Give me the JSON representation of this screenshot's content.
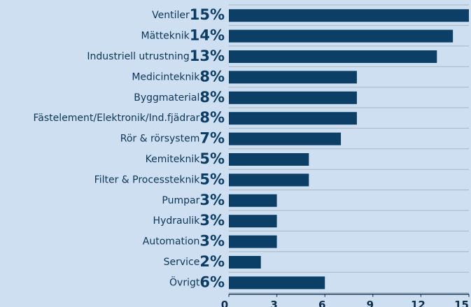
{
  "chart_data": {
    "type": "bar",
    "orientation": "horizontal",
    "categories": [
      "Ventiler",
      "Mätteknik",
      "Industriell utrustning",
      "Medicinteknik",
      "Byggmaterial",
      "Fästelement/Elektronik/Ind.fjädrar",
      "Rör & rörsystem",
      "Kemiteknik",
      "Filter & Processteknik",
      "Pumpar",
      "Hydraulik",
      "Automation",
      "Service",
      "Övrigt"
    ],
    "values": [
      15,
      14,
      13,
      8,
      8,
      8,
      7,
      5,
      5,
      3,
      3,
      3,
      2,
      6
    ],
    "value_labels": [
      "15%",
      "14%",
      "13%",
      "8%",
      "8%",
      "8%",
      "7%",
      "5%",
      "5%",
      "3%",
      "3%",
      "3%",
      "2%",
      "6%"
    ],
    "color": "#0c3f66",
    "xlim": [
      0,
      15
    ],
    "xticks": [
      0,
      3,
      6,
      9,
      12,
      15
    ]
  }
}
